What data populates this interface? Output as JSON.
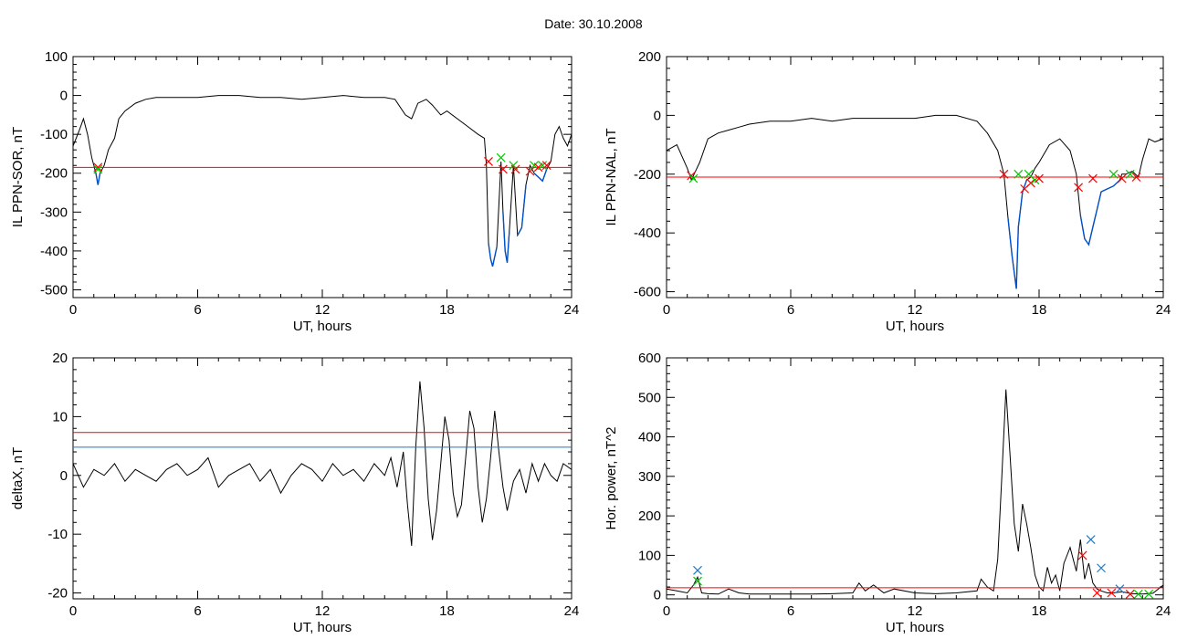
{
  "title": "Date:  30.10.2008",
  "chart_data": [
    {
      "type": "line",
      "panel": "top-left",
      "xlabel": "UT, hours",
      "ylabel": "IL PPN-SOR, nT",
      "xlim": [
        0,
        24
      ],
      "ylim": [
        -520,
        100
      ],
      "xticks": [
        0,
        6,
        12,
        18,
        24
      ],
      "yticks": [
        100,
        0,
        -100,
        -200,
        -300,
        -400,
        -500
      ],
      "threshold": {
        "value": -185,
        "color": "#ff0000"
      },
      "colors": {
        "trace": "#000000",
        "highlight": "#0050c8",
        "threshold": "#ff0000"
      },
      "series": [
        {
          "x": [
            0,
            0.3,
            0.5,
            0.7,
            0.9,
            1.1,
            1.2,
            1.3,
            1.5,
            1.7,
            2.0,
            2.2,
            2.5,
            3.0,
            3.5,
            4.0,
            5.0,
            6.0,
            7.0,
            8.0,
            9.0,
            10.0,
            11.0,
            12.0,
            13.0,
            14.0,
            15.0,
            15.5,
            16.0,
            16.3,
            16.6,
            17.0,
            17.3,
            17.7,
            18.0,
            18.5,
            19.0,
            19.5,
            19.8,
            19.9,
            20.0,
            20.1,
            20.2,
            20.4,
            20.6,
            20.7,
            20.8,
            20.9,
            21.0,
            21.2,
            21.4,
            21.6,
            21.8,
            22.0,
            22.2,
            22.4,
            22.6,
            22.8,
            23.0,
            23.2,
            23.4,
            23.6,
            23.8,
            24.0
          ],
          "y": [
            -130,
            -90,
            -60,
            -100,
            -160,
            -200,
            -230,
            -200,
            -180,
            -140,
            -110,
            -60,
            -40,
            -20,
            -10,
            -5,
            -5,
            -5,
            0,
            0,
            -5,
            -5,
            -10,
            -5,
            0,
            -5,
            -5,
            -10,
            -50,
            -60,
            -20,
            -10,
            -25,
            -50,
            -40,
            -60,
            -80,
            -100,
            -110,
            -180,
            -380,
            -420,
            -440,
            -390,
            -170,
            -300,
            -400,
            -430,
            -350,
            -180,
            -360,
            -340,
            -230,
            -180,
            -200,
            -210,
            -220,
            -190,
            -170,
            -100,
            -80,
            -110,
            -130,
            -100
          ]
        }
      ],
      "markers": [
        {
          "x": 1.2,
          "y": -185,
          "color": "#ff0000"
        },
        {
          "x": 1.2,
          "y": -190,
          "color": "#00c800"
        },
        {
          "x": 20.0,
          "y": -170,
          "color": "#ff0000"
        },
        {
          "x": 20.6,
          "y": -160,
          "color": "#00c800"
        },
        {
          "x": 20.7,
          "y": -190,
          "color": "#ff0000"
        },
        {
          "x": 21.2,
          "y": -180,
          "color": "#00c800"
        },
        {
          "x": 21.3,
          "y": -190,
          "color": "#ff0000"
        },
        {
          "x": 22.0,
          "y": -195,
          "color": "#ff0000"
        },
        {
          "x": 22.2,
          "y": -180,
          "color": "#00c800"
        },
        {
          "x": 22.4,
          "y": -185,
          "color": "#ff0000"
        },
        {
          "x": 22.6,
          "y": -180,
          "color": "#00c800"
        },
        {
          "x": 22.8,
          "y": -180,
          "color": "#ff0000"
        }
      ]
    },
    {
      "type": "line",
      "panel": "top-right",
      "xlabel": "UT, hours",
      "ylabel": "IL PPN-NAL, nT",
      "xlim": [
        0,
        24
      ],
      "ylim": [
        -620,
        200
      ],
      "xticks": [
        0,
        6,
        12,
        18,
        24
      ],
      "yticks": [
        200,
        0,
        -200,
        -400,
        -600
      ],
      "threshold": {
        "value": -210,
        "color": "#ff0000"
      },
      "colors": {
        "trace": "#000000",
        "highlight": "#0050c8",
        "threshold": "#ff0000"
      },
      "series": [
        {
          "x": [
            0,
            0.5,
            1.0,
            1.2,
            1.4,
            1.6,
            2.0,
            2.5,
            3.0,
            3.5,
            4.0,
            5.0,
            6.0,
            7.0,
            8.0,
            9.0,
            10.0,
            11.0,
            12.0,
            13.0,
            14.0,
            15.0,
            15.5,
            16.0,
            16.3,
            16.5,
            16.7,
            16.9,
            17.0,
            17.2,
            17.4,
            17.6,
            17.8,
            18.0,
            18.5,
            19.0,
            19.5,
            19.8,
            20.0,
            20.2,
            20.4,
            20.6,
            20.8,
            21.0,
            21.3,
            21.6,
            21.9,
            22.0,
            22.2,
            22.5,
            22.8,
            23.0,
            23.3,
            23.6,
            24.0
          ],
          "y": [
            -120,
            -100,
            -180,
            -220,
            -190,
            -160,
            -80,
            -60,
            -50,
            -40,
            -30,
            -20,
            -20,
            -10,
            -20,
            -10,
            -10,
            -10,
            -10,
            0,
            0,
            -20,
            -60,
            -120,
            -200,
            -350,
            -480,
            -590,
            -380,
            -260,
            -220,
            -210,
            -180,
            -160,
            -100,
            -80,
            -120,
            -200,
            -340,
            -420,
            -440,
            -380,
            -320,
            -260,
            -250,
            -240,
            -220,
            -200,
            -200,
            -190,
            -210,
            -150,
            -80,
            -90,
            -80
          ]
        }
      ],
      "markers": [
        {
          "x": 1.2,
          "y": -205,
          "color": "#ff0000"
        },
        {
          "x": 1.3,
          "y": -215,
          "color": "#00c800"
        },
        {
          "x": 16.3,
          "y": -200,
          "color": "#ff0000"
        },
        {
          "x": 17.0,
          "y": -200,
          "color": "#00c800"
        },
        {
          "x": 17.3,
          "y": -250,
          "color": "#ff0000"
        },
        {
          "x": 17.5,
          "y": -200,
          "color": "#00c800"
        },
        {
          "x": 17.6,
          "y": -230,
          "color": "#ff0000"
        },
        {
          "x": 17.8,
          "y": -220,
          "color": "#00c800"
        },
        {
          "x": 18.0,
          "y": -215,
          "color": "#ff0000"
        },
        {
          "x": 19.9,
          "y": -245,
          "color": "#ff0000"
        },
        {
          "x": 20.6,
          "y": -215,
          "color": "#ff0000"
        },
        {
          "x": 21.6,
          "y": -200,
          "color": "#00c800"
        },
        {
          "x": 22.0,
          "y": -215,
          "color": "#ff0000"
        },
        {
          "x": 22.4,
          "y": -200,
          "color": "#00c800"
        },
        {
          "x": 22.7,
          "y": -210,
          "color": "#ff0000"
        }
      ]
    },
    {
      "type": "line",
      "panel": "bottom-left",
      "xlabel": "UT, hours",
      "ylabel": "deltaX, nT",
      "xlim": [
        0,
        24
      ],
      "ylim": [
        -21,
        20
      ],
      "xticks": [
        0,
        6,
        12,
        18,
        24
      ],
      "yticks": [
        20,
        10,
        0,
        -10,
        -20
      ],
      "threshold_lines": [
        {
          "value": 7.3,
          "color": "#ff0000"
        },
        {
          "value": 4.8,
          "color": "#1e78c8"
        }
      ],
      "colors": {
        "trace": "#000000"
      },
      "series": [
        {
          "x": [
            0,
            0.5,
            1.0,
            1.5,
            2.0,
            2.5,
            3.0,
            3.5,
            4.0,
            4.5,
            5.0,
            5.5,
            6.0,
            6.5,
            7.0,
            7.5,
            8.0,
            8.5,
            9.0,
            9.5,
            10.0,
            10.5,
            11.0,
            11.5,
            12.0,
            12.5,
            13.0,
            13.5,
            14.0,
            14.5,
            15.0,
            15.3,
            15.6,
            15.9,
            16.1,
            16.3,
            16.5,
            16.7,
            16.9,
            17.1,
            17.3,
            17.5,
            17.7,
            17.9,
            18.1,
            18.3,
            18.5,
            18.7,
            18.9,
            19.1,
            19.3,
            19.5,
            19.7,
            19.9,
            20.1,
            20.3,
            20.5,
            20.7,
            20.9,
            21.2,
            21.5,
            21.8,
            22.1,
            22.4,
            22.7,
            23.0,
            23.3,
            23.6,
            24.0
          ],
          "y": [
            2,
            -2,
            1,
            0,
            2,
            -1,
            1,
            0,
            -1,
            1,
            2,
            0,
            1,
            3,
            -2,
            0,
            1,
            2,
            -1,
            1,
            -3,
            0,
            2,
            1,
            -1,
            2,
            0,
            1,
            -1,
            2,
            0,
            3,
            -2,
            4,
            -5,
            -12,
            5,
            16,
            8,
            -4,
            -11,
            -6,
            2,
            10,
            6,
            -3,
            -7,
            -5,
            3,
            11,
            8,
            -2,
            -8,
            -4,
            3,
            11,
            4,
            -2,
            -6,
            -1,
            1,
            -3,
            2,
            -1,
            2,
            0,
            -1,
            2,
            1
          ]
        }
      ]
    },
    {
      "type": "line",
      "panel": "bottom-right",
      "xlabel": "UT, hours",
      "ylabel": "Hor. power, nT^2",
      "xlim": [
        0,
        24
      ],
      "ylim": [
        -10,
        600
      ],
      "xticks": [
        0,
        6,
        12,
        18,
        24
      ],
      "yticks": [
        600,
        500,
        400,
        300,
        200,
        100,
        0
      ],
      "threshold": {
        "value": 18,
        "color": "#ff0000"
      },
      "colors": {
        "trace": "#000000",
        "threshold": "#ff0000"
      },
      "series": [
        {
          "x": [
            0,
            0.5,
            1.0,
            1.3,
            1.5,
            1.7,
            2.0,
            2.5,
            3.0,
            3.5,
            4.0,
            5.0,
            6.0,
            7.0,
            8.0,
            9.0,
            9.3,
            9.6,
            10.0,
            10.5,
            11.0,
            12.0,
            13.0,
            14.0,
            15.0,
            15.2,
            15.5,
            15.8,
            16.0,
            16.2,
            16.4,
            16.6,
            16.8,
            17.0,
            17.2,
            17.4,
            17.6,
            17.8,
            18.0,
            18.2,
            18.4,
            18.6,
            18.8,
            19.0,
            19.2,
            19.5,
            19.8,
            20.0,
            20.2,
            20.4,
            20.6,
            20.8,
            21.0,
            21.3,
            21.6,
            22.0,
            22.5,
            23.0,
            23.5,
            24.0
          ],
          "y": [
            15,
            10,
            5,
            25,
            45,
            5,
            3,
            2,
            15,
            5,
            2,
            2,
            2,
            2,
            3,
            5,
            30,
            10,
            25,
            5,
            15,
            5,
            3,
            5,
            10,
            40,
            20,
            10,
            90,
            300,
            520,
            350,
            180,
            110,
            230,
            180,
            120,
            50,
            20,
            10,
            70,
            30,
            50,
            10,
            80,
            120,
            60,
            140,
            40,
            80,
            30,
            15,
            10,
            5,
            5,
            8,
            3,
            2,
            4,
            25
          ]
        }
      ],
      "markers": [
        {
          "x": 1.5,
          "y": 62,
          "color": "#1e78c8"
        },
        {
          "x": 1.5,
          "y": 35,
          "color": "#00c800"
        },
        {
          "x": 20.1,
          "y": 100,
          "color": "#ff0000"
        },
        {
          "x": 20.5,
          "y": 140,
          "color": "#1e78c8"
        },
        {
          "x": 20.8,
          "y": 5,
          "color": "#ff0000"
        },
        {
          "x": 21.0,
          "y": 68,
          "color": "#1e78c8"
        },
        {
          "x": 21.5,
          "y": 5,
          "color": "#ff0000"
        },
        {
          "x": 21.9,
          "y": 15,
          "color": "#1e78c8"
        },
        {
          "x": 22.4,
          "y": 2,
          "color": "#ff0000"
        },
        {
          "x": 22.8,
          "y": 2,
          "color": "#00c800"
        },
        {
          "x": 23.3,
          "y": 2,
          "color": "#00c800"
        }
      ]
    }
  ]
}
